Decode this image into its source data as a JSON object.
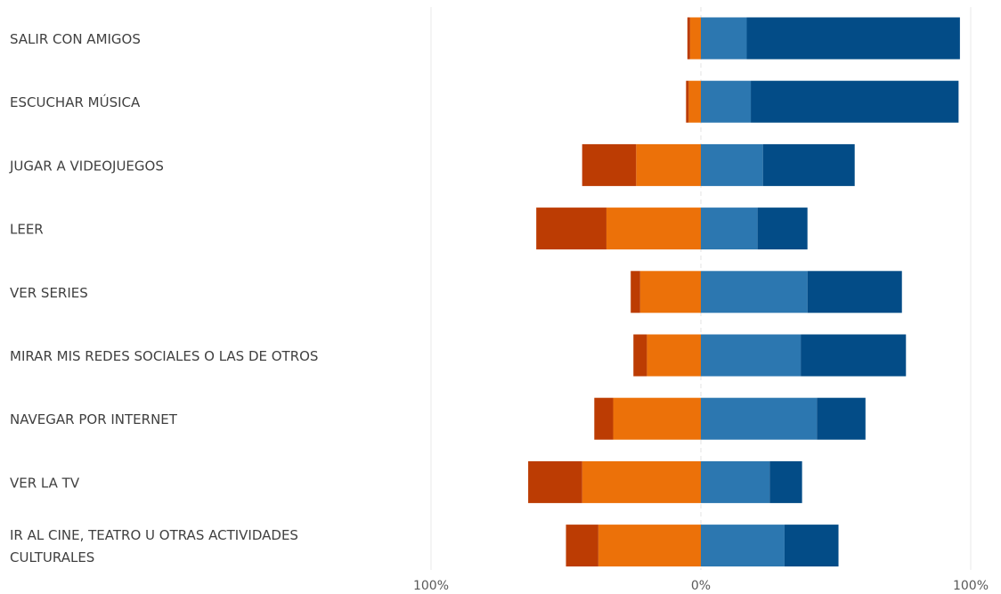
{
  "chart_data": {
    "type": "bar",
    "orientation": "horizontal",
    "stacked": "diverging",
    "categories": [
      [
        "SALIR CON AMIGOS"
      ],
      [
        "ESCUCHAR MÚSICA"
      ],
      [
        "JUGAR A VIDEOJUEGOS"
      ],
      [
        "LEER"
      ],
      [
        "VER SERIES"
      ],
      [
        "MIRAR MIS REDES SOCIALES O LAS DE OTROS"
      ],
      [
        "NAVEGAR POR INTERNET"
      ],
      [
        "VER LA TV"
      ],
      [
        "IR AL CINE, TEATRO U OTRAS ACTIVIDADES",
        "CULTURALES"
      ]
    ],
    "series": [
      {
        "side": "negative",
        "color": "#bc3c03",
        "values": [
          1,
          1,
          20,
          26,
          3.5,
          5,
          7,
          20,
          12
        ]
      },
      {
        "side": "negative",
        "color": "#ec7109",
        "values": [
          4,
          4.5,
          24,
          35,
          22.5,
          20,
          32.5,
          44,
          38
        ]
      },
      {
        "side": "positive",
        "color": "#2c77b0",
        "values": [
          17,
          18.5,
          23,
          21,
          39.5,
          37,
          43,
          25.5,
          31
        ]
      },
      {
        "side": "positive",
        "color": "#034c87",
        "values": [
          79,
          77,
          34,
          18.5,
          35,
          39,
          18,
          12,
          20
        ]
      }
    ],
    "xlim": [
      -100,
      100
    ],
    "x_ticks": [
      {
        "value": -100,
        "label": "100%"
      },
      {
        "value": 0,
        "label": "0%"
      },
      {
        "value": 100,
        "label": "100%"
      }
    ],
    "grid": true
  }
}
